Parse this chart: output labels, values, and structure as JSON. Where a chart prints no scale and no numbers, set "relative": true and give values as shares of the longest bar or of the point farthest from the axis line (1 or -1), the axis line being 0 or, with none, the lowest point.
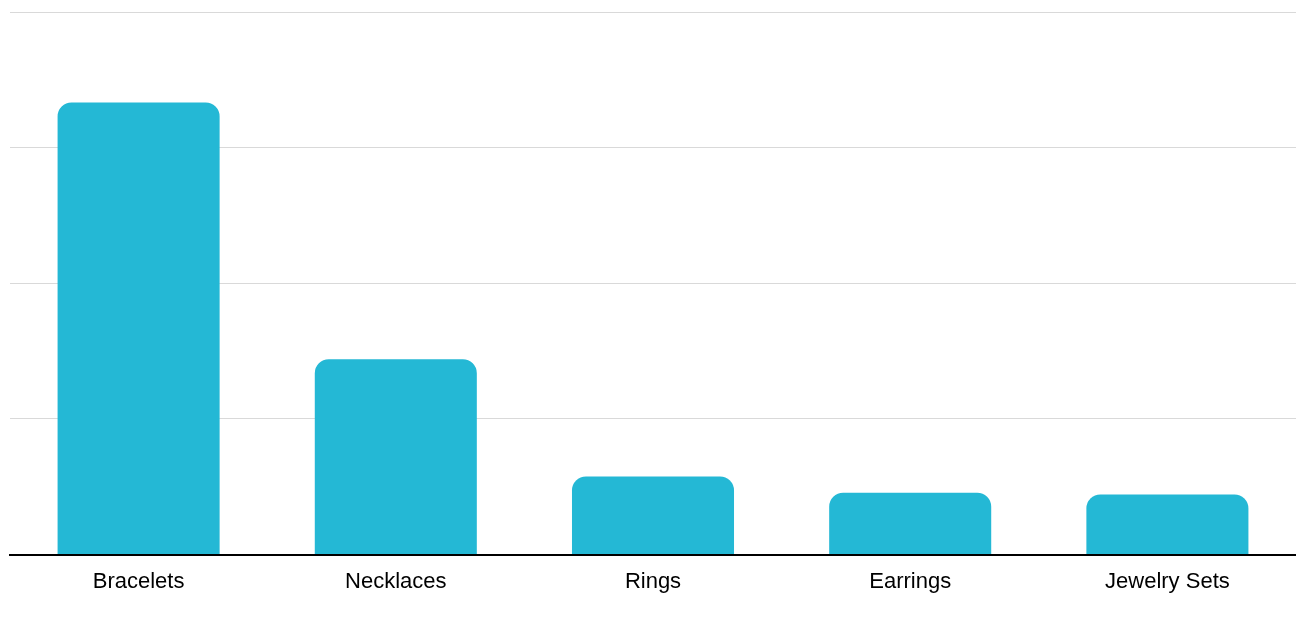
{
  "chart_data": {
    "type": "bar",
    "relative": true,
    "categories": [
      "Bracelets",
      "Necklaces",
      "Rings",
      "Earrings",
      "Jewelry Sets"
    ],
    "values": [
      1,
      0.432,
      0.173,
      0.137,
      0.133
    ],
    "color": "#24b8d5",
    "grid": "y"
  }
}
